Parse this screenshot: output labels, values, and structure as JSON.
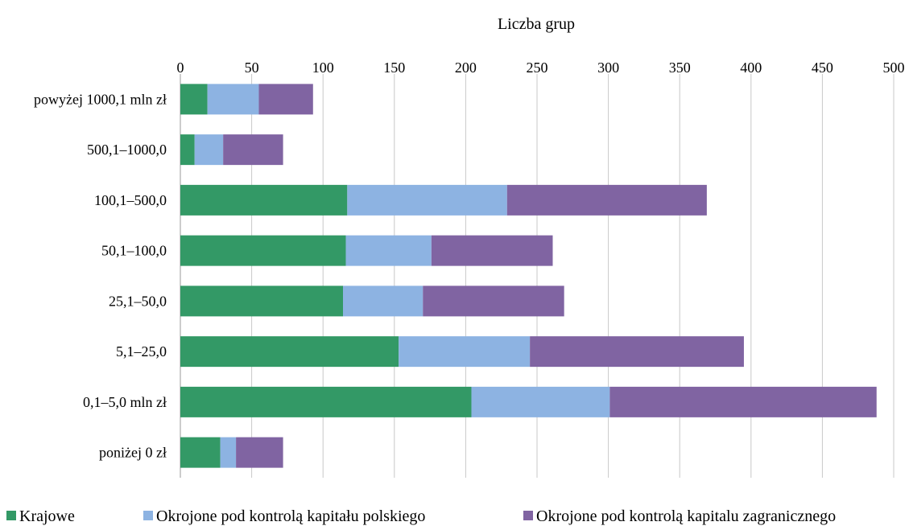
{
  "chart_data": {
    "type": "bar",
    "orientation": "horizontal",
    "stacked": true,
    "title": "Liczba grup",
    "categories": [
      "powyżej 1000,1 mln zł",
      "500,1–1000,0",
      "100,1–500,0",
      "50,1–100,0",
      "25,1–50,0",
      "5,1–25,0",
      "0,1–5,0 mln zł",
      "poniżej 0 zł"
    ],
    "series": [
      {
        "name": "Krajowe",
        "color": "#339966",
        "values": [
          19,
          10,
          117,
          116,
          114,
          153,
          204,
          28
        ]
      },
      {
        "name": "Okrojone pod kontrolą kapitału polskiego",
        "color": "#8DB3E2",
        "values": [
          36,
          20,
          112,
          60,
          56,
          92,
          97,
          11
        ]
      },
      {
        "name": "Okrojone pod kontrolą kapitalu zagranicznego",
        "color": "#8064A2",
        "values": [
          38,
          42,
          140,
          85,
          99,
          150,
          187,
          33
        ]
      }
    ],
    "xlim": [
      0,
      500
    ],
    "xticks": [
      "0",
      "50",
      "100",
      "150",
      "200",
      "250",
      "300",
      "350",
      "400",
      "450",
      "500"
    ],
    "grid": true,
    "legend_position": "bottom"
  }
}
